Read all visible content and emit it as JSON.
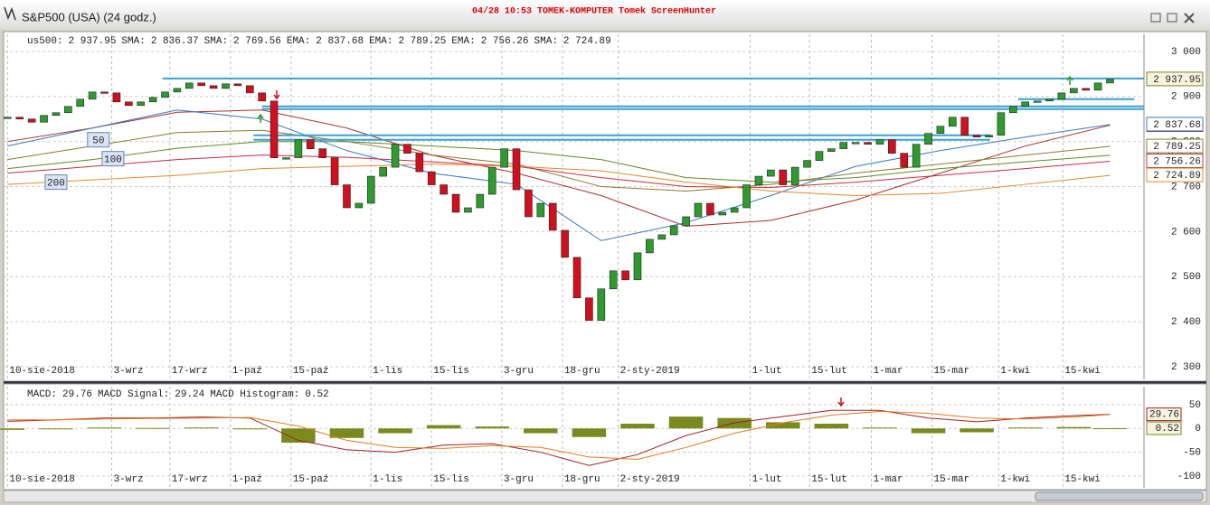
{
  "window": {
    "title": "S&P500 (USA) (24 godz.)",
    "caption": "04/28 10:53 TOMEK-KOMPUTER Tomek ScreenHunter"
  },
  "chart_data": [
    {
      "type": "candlestick",
      "name": "us500:",
      "label": "2 937.95",
      "values": [
        2854,
        2850,
        2843,
        2858,
        2864,
        2878,
        2894,
        2910,
        2908,
        2888,
        2880,
        2888,
        2898,
        2910,
        2918,
        2930,
        2924,
        2918,
        2928,
        2924,
        2908,
        2890,
        2764,
        2764,
        2804,
        2784,
        2764,
        2704,
        2653,
        2663,
        2723,
        2743,
        2794,
        2774,
        2733,
        2704,
        2683,
        2643,
        2653,
        2683,
        2743,
        2784,
        2693,
        2633,
        2663,
        2603,
        2543,
        2453,
        2403,
        2473,
        2513,
        2493,
        2553,
        2583,
        2593,
        2613,
        2633,
        2663,
        2637,
        2643,
        2653,
        2704,
        2723,
        2737,
        2704,
        2743,
        2758,
        2778,
        2784,
        2798,
        2798,
        2794,
        2804,
        2774,
        2743,
        2794,
        2818,
        2834,
        2854,
        2814,
        2810,
        2814,
        2864,
        2878,
        2888,
        2890,
        2894,
        2908,
        2918,
        2914,
        2930,
        2937.95
      ],
      "color_up": "#2e9b2e",
      "color_down": "#d0101e",
      "xlim": [
        -0.25,
        93.8
      ],
      "xticks": [
        {
          "value": 0,
          "label": "10-sie-2018"
        },
        {
          "value": 8.6,
          "label": "3-wrz"
        },
        {
          "value": 13.4,
          "label": "17-wrz"
        },
        {
          "value": 18.4,
          "label": "1-paź"
        },
        {
          "value": 23.4,
          "label": "15-paź"
        },
        {
          "value": 30,
          "label": "1-lis"
        },
        {
          "value": 35,
          "label": "15-lis"
        },
        {
          "value": 40.8,
          "label": "3-gru"
        },
        {
          "value": 45.8,
          "label": "18-gru"
        },
        {
          "value": 50.4,
          "label": "2-sty-2019"
        },
        {
          "value": 61.3,
          "label": "1-lut"
        },
        {
          "value": 66.2,
          "label": "15-lut"
        },
        {
          "value": 71.3,
          "label": "1-mar"
        },
        {
          "value": 76.3,
          "label": "15-mar"
        },
        {
          "value": 81.8,
          "label": "1-kwi"
        },
        {
          "value": 87.1,
          "label": "15-kwi"
        }
      ],
      "ylim": [
        2272,
        3038
      ],
      "yticks": [
        {
          "value": 2300,
          "label": "2 300"
        },
        {
          "value": 2400,
          "label": "2 400"
        },
        {
          "value": 2500,
          "label": "2 500"
        },
        {
          "value": 2600,
          "label": "2 600"
        },
        {
          "value": 2700,
          "label": "2 700"
        },
        {
          "value": 2800,
          "label": "2 800"
        },
        {
          "value": 2900,
          "label": "2 900"
        },
        {
          "value": 3000,
          "label": "3 000"
        }
      ],
      "grid": true,
      "overlays": {
        "x": [
          0,
          7,
          14,
          21,
          28,
          35,
          42,
          49,
          56,
          63,
          70,
          77,
          84,
          91
        ],
        "series": [
          {
            "name": "SMA:",
            "label": "2 836.37",
            "color": "#a8302a",
            "values": [
              2800,
              2830,
              2865,
              2870,
              2830,
              2770,
              2730,
              2680,
              2612,
              2625,
              2670,
              2730,
              2790,
              2836.37
            ]
          },
          {
            "name": "SMA:",
            "label": "2 769.56",
            "color": "#5e8a2a",
            "values": [
              2740,
              2760,
              2785,
              2800,
              2800,
              2790,
              2780,
              2760,
              2720,
              2710,
              2720,
              2740,
              2755,
              2769.56
            ]
          },
          {
            "name": "EMA:",
            "label": "2 837.68",
            "color": "#3a78c0",
            "values": [
              2790,
              2830,
              2870,
              2850,
              2780,
              2730,
              2705,
              2580,
              2620,
              2680,
              2745,
              2780,
              2810,
              2837.68
            ]
          },
          {
            "name": "EMA:",
            "label": "2 789.25",
            "color": "#8a7a30",
            "values": [
              2760,
              2790,
              2820,
              2825,
              2800,
              2770,
              2750,
              2700,
              2690,
              2705,
              2730,
              2750,
              2770,
              2789.25
            ]
          },
          {
            "name": "EMA:",
            "label": "2 756.26",
            "color": "#c03040",
            "values": [
              2730,
              2745,
              2760,
              2770,
              2765,
              2755,
              2745,
              2720,
              2700,
              2698,
              2710,
              2725,
              2740,
              2756.26
            ]
          },
          {
            "name": "SMA:",
            "label": "2 724.89",
            "color": "#e08a2a",
            "values": [
              2705,
              2715,
              2725,
              2740,
              2745,
              2750,
              2745,
              2735,
              2710,
              2690,
              2680,
              2685,
              2705,
              2724.89
            ]
          }
        ]
      },
      "levels": [
        {
          "value": 2940,
          "from": 12.8,
          "to": 93.8
        },
        {
          "value": 2878,
          "from": 21,
          "to": 93.8
        },
        {
          "value": 2872,
          "from": 21,
          "to": 93.8
        },
        {
          "value": 2814,
          "from": 20.3,
          "to": 81.1
        },
        {
          "value": 2804,
          "from": 20.3,
          "to": 81.1
        },
        {
          "value": 2894,
          "from": 83.4,
          "to": 93
        }
      ],
      "annotations": [
        {
          "text": "50",
          "x": 7.5,
          "y": 2804
        },
        {
          "text": "100",
          "x": 8.7,
          "y": 2762
        },
        {
          "text": "200",
          "x": 4,
          "y": 2710
        }
      ]
    },
    {
      "type": "macd",
      "x": [
        0,
        4,
        8,
        12,
        16,
        20,
        24,
        28,
        32,
        36,
        40,
        44,
        48,
        52,
        56,
        60,
        64,
        68,
        72,
        76,
        80,
        84,
        88,
        91
      ],
      "series": [
        {
          "name": "MACD:",
          "color": "#a02020",
          "values": [
            15,
            18,
            22,
            22,
            24,
            22,
            -25,
            -45,
            -50,
            -35,
            -32,
            -50,
            -78,
            -55,
            -15,
            12,
            25,
            38,
            38,
            22,
            14,
            22,
            27,
            29.76
          ]
        },
        {
          "name": "MACD Signal:",
          "color": "#e07b20",
          "values": [
            18,
            18,
            20,
            21,
            22,
            23,
            5,
            -25,
            -40,
            -42,
            -36,
            -40,
            -60,
            -65,
            -40,
            -10,
            12,
            28,
            36,
            32,
            22,
            20,
            24,
            29.24
          ]
        },
        {
          "name": "MACD Histogram:",
          "color": "#7a8a1e",
          "values": [
            -3,
            0,
            2,
            1,
            2,
            -1,
            -30,
            -20,
            -10,
            7,
            4,
            -10,
            -18,
            10,
            25,
            22,
            13,
            10,
            2,
            -10,
            -8,
            2,
            3,
            0.52
          ]
        }
      ],
      "ylim": [
        -125,
        88
      ],
      "yticks": [
        -100,
        -50,
        0,
        50
      ],
      "grid": true
    }
  ]
}
